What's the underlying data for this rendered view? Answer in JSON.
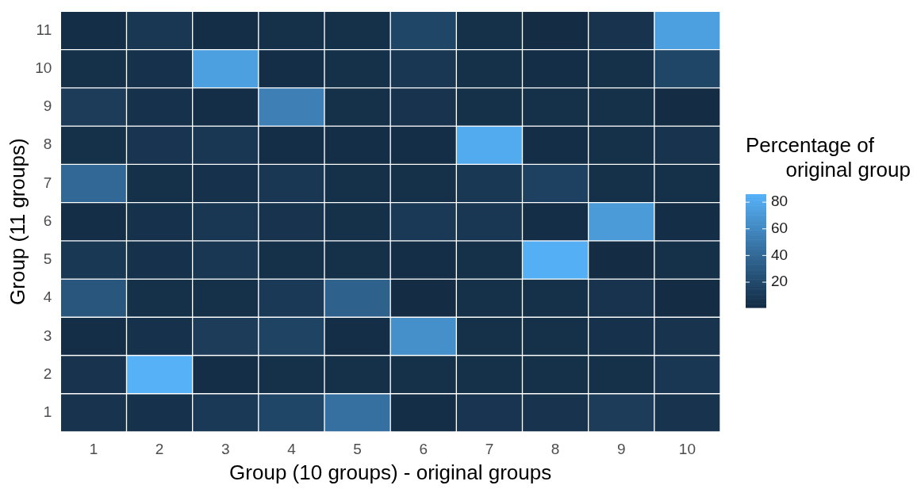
{
  "chart_data": {
    "type": "heatmap",
    "xlabel": "Group (10 groups) - original groups",
    "ylabel": "Group (11 groups)",
    "clabel": "Percentage of\noriginal group",
    "categories": [
      "1",
      "2",
      "3",
      "4",
      "5",
      "6",
      "7",
      "8",
      "9",
      "10"
    ],
    "y_categories": [
      "11",
      "10",
      "9",
      "8",
      "7",
      "6",
      "5",
      "4",
      "3",
      "2",
      "1"
    ],
    "cells": [
      [
        3,
        8,
        3,
        4,
        4,
        18,
        4,
        2,
        6,
        75
      ],
      [
        4,
        5,
        75,
        3,
        4,
        8,
        4,
        3,
        4,
        18
      ],
      [
        12,
        5,
        3,
        55,
        4,
        6,
        4,
        4,
        4,
        2
      ],
      [
        4,
        7,
        8,
        3,
        3,
        3,
        82,
        3,
        4,
        6
      ],
      [
        40,
        4,
        5,
        8,
        4,
        4,
        9,
        15,
        4,
        4
      ],
      [
        3,
        5,
        8,
        6,
        4,
        10,
        8,
        3,
        72,
        3
      ],
      [
        9,
        5,
        8,
        4,
        4,
        3,
        4,
        85,
        2,
        4
      ],
      [
        28,
        4,
        4,
        10,
        35,
        2,
        4,
        4,
        6,
        2
      ],
      [
        3,
        5,
        12,
        16,
        3,
        65,
        4,
        4,
        5,
        6
      ],
      [
        6,
        86,
        3,
        4,
        4,
        4,
        4,
        4,
        4,
        8
      ],
      [
        6,
        5,
        10,
        18,
        45,
        3,
        7,
        6,
        12,
        6
      ]
    ],
    "colors": [
      "#132b43",
      "#56b1f7"
    ],
    "clim": [
      1,
      86
    ],
    "cticks": [
      20,
      40,
      60,
      80
    ]
  }
}
